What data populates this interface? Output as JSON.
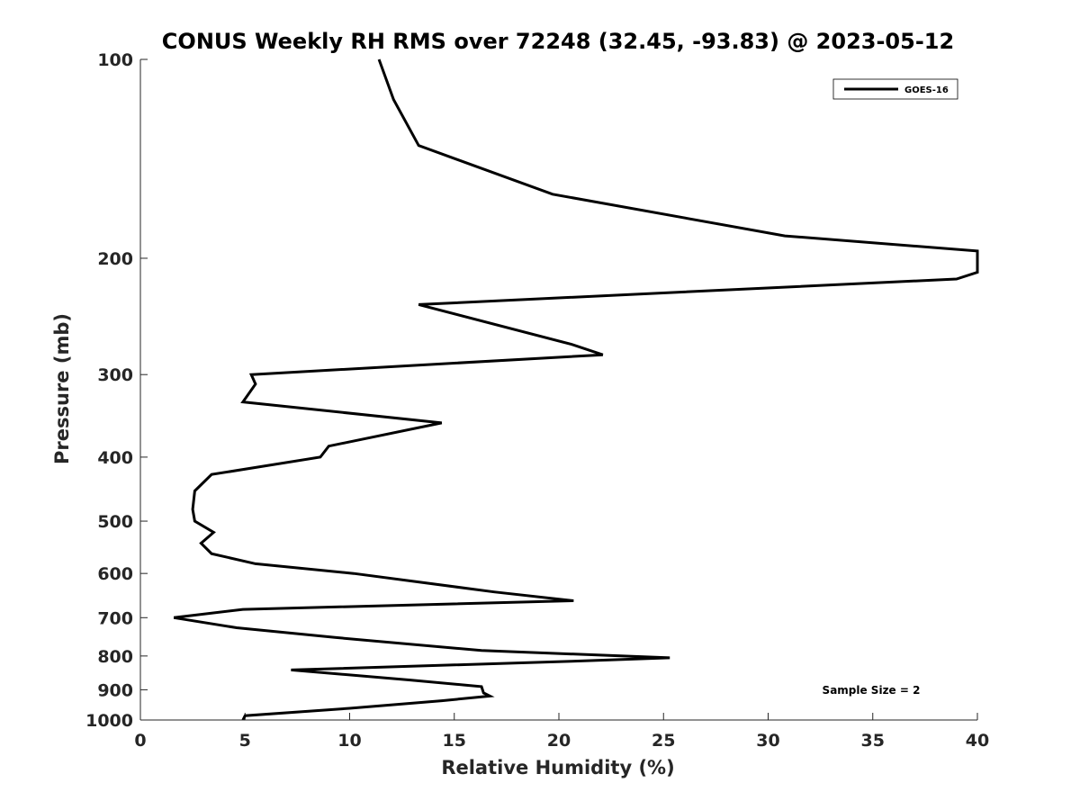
{
  "chart_data": {
    "type": "line",
    "title": "CONUS Weekly RH RMS over 72248 (32.45, -93.83) @ 2023-05-12",
    "xlabel": "Relative Humidity (%)",
    "ylabel": "Pressure (mb)",
    "xlim": [
      0,
      40
    ],
    "ylim": [
      100,
      1000
    ],
    "yscale": "log",
    "y_reversed": true,
    "xticks": [
      0,
      5,
      10,
      15,
      20,
      25,
      30,
      35,
      40
    ],
    "xtick_labels": [
      "0",
      "5",
      "10",
      "15",
      "20",
      "25",
      "30",
      "35",
      "40"
    ],
    "yticks": [
      100,
      200,
      300,
      400,
      500,
      600,
      700,
      800,
      900,
      1000
    ],
    "ytick_labels": [
      "100",
      "200",
      "300",
      "400",
      "500",
      "600",
      "700",
      "800",
      "900",
      "1000"
    ],
    "grid": false,
    "legend_position": "top-right",
    "annotation": "Sample Size = 2",
    "series": [
      {
        "name": "GOES-16",
        "color": "#000000",
        "x": [
          11.4,
          12.1,
          13.3,
          19.7,
          30.8,
          40.0,
          40.0,
          39.0,
          13.3,
          20.6,
          22.1,
          5.3,
          5.5,
          4.9,
          14.4,
          9.0,
          8.6,
          3.4,
          2.6,
          2.5,
          2.6,
          3.5,
          2.9,
          3.4,
          5.5,
          10.2,
          16.9,
          20.7,
          4.9,
          1.6,
          4.6,
          9.3,
          16.3,
          25.3,
          20.6,
          7.2,
          12.9,
          16.3,
          16.4,
          16.7,
          14.4,
          10.0,
          5.0,
          4.9
        ],
        "y": [
          100,
          115,
          135,
          160,
          185,
          195,
          210,
          215,
          235,
          270,
          280,
          300,
          310,
          330,
          355,
          385,
          400,
          425,
          450,
          480,
          500,
          520,
          540,
          560,
          580,
          600,
          640,
          660,
          680,
          700,
          725,
          750,
          785,
          805,
          815,
          840,
          870,
          890,
          910,
          920,
          935,
          960,
          985,
          1000
        ]
      }
    ]
  }
}
